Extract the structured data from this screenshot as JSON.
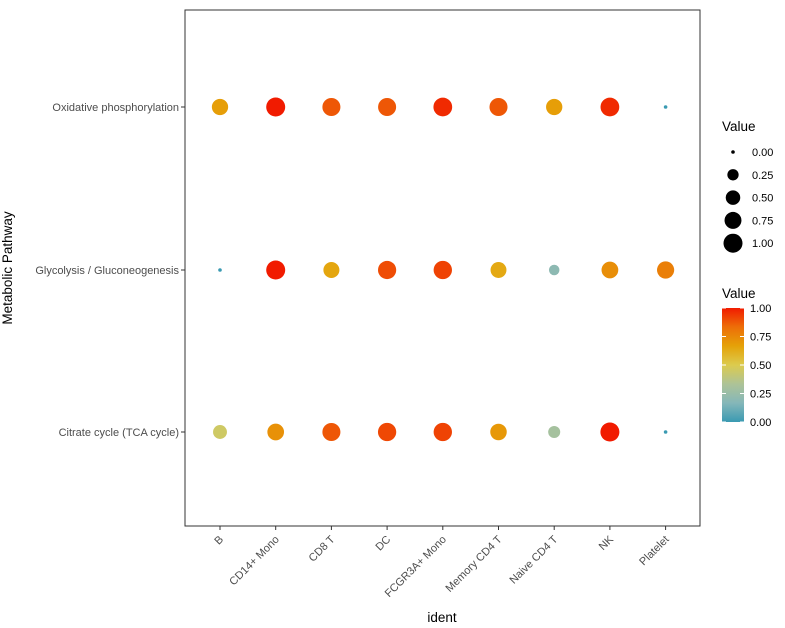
{
  "chart_data": {
    "type": "scatter",
    "subtype": "dot-plot",
    "xlabel": "ident",
    "ylabel": "Metabolic Pathway",
    "categories_x": [
      "B",
      "CD14+ Mono",
      "CD8 T",
      "DC",
      "FCGR3A+ Mono",
      "Memory CD4 T",
      "Naive CD4 T",
      "NK",
      "Platelet"
    ],
    "categories_y": [
      "Oxidative phosphorylation",
      "Glycolysis / Gluconeogenesis",
      "Citrate cycle (TCA cycle)"
    ],
    "series": [
      {
        "name": "Oxidative phosphorylation",
        "values": [
          0.68,
          1.0,
          0.88,
          0.88,
          0.97,
          0.88,
          0.68,
          0.97,
          0.0
        ]
      },
      {
        "name": "Glycolysis / Gluconeogenesis",
        "values": [
          0.0,
          1.0,
          0.65,
          0.9,
          0.92,
          0.64,
          0.2,
          0.73,
          0.78
        ]
      },
      {
        "name": "Citrate cycle (TCA cycle)",
        "values": [
          0.45,
          0.72,
          0.88,
          0.91,
          0.92,
          0.7,
          0.3,
          1.0,
          0.0
        ]
      }
    ],
    "grid": false,
    "legend_size": {
      "title": "Value",
      "breaks": [
        "0.00",
        "0.25",
        "0.50",
        "0.75",
        "1.00"
      ],
      "values": [
        0.0,
        0.25,
        0.5,
        0.75,
        1.0
      ]
    },
    "legend_color": {
      "title": "Value",
      "breaks": [
        "0.00",
        "0.25",
        "0.50",
        "0.75",
        "1.00"
      ],
      "values": [
        0.0,
        0.25,
        0.5,
        0.75,
        1.0
      ],
      "colors": [
        "#3A9AB2",
        "#85B7B9",
        "#ADC397",
        "#DCCB4E",
        "#E5A208",
        "#ED6E08",
        "#F11B00"
      ]
    },
    "legend_placement": "right"
  }
}
